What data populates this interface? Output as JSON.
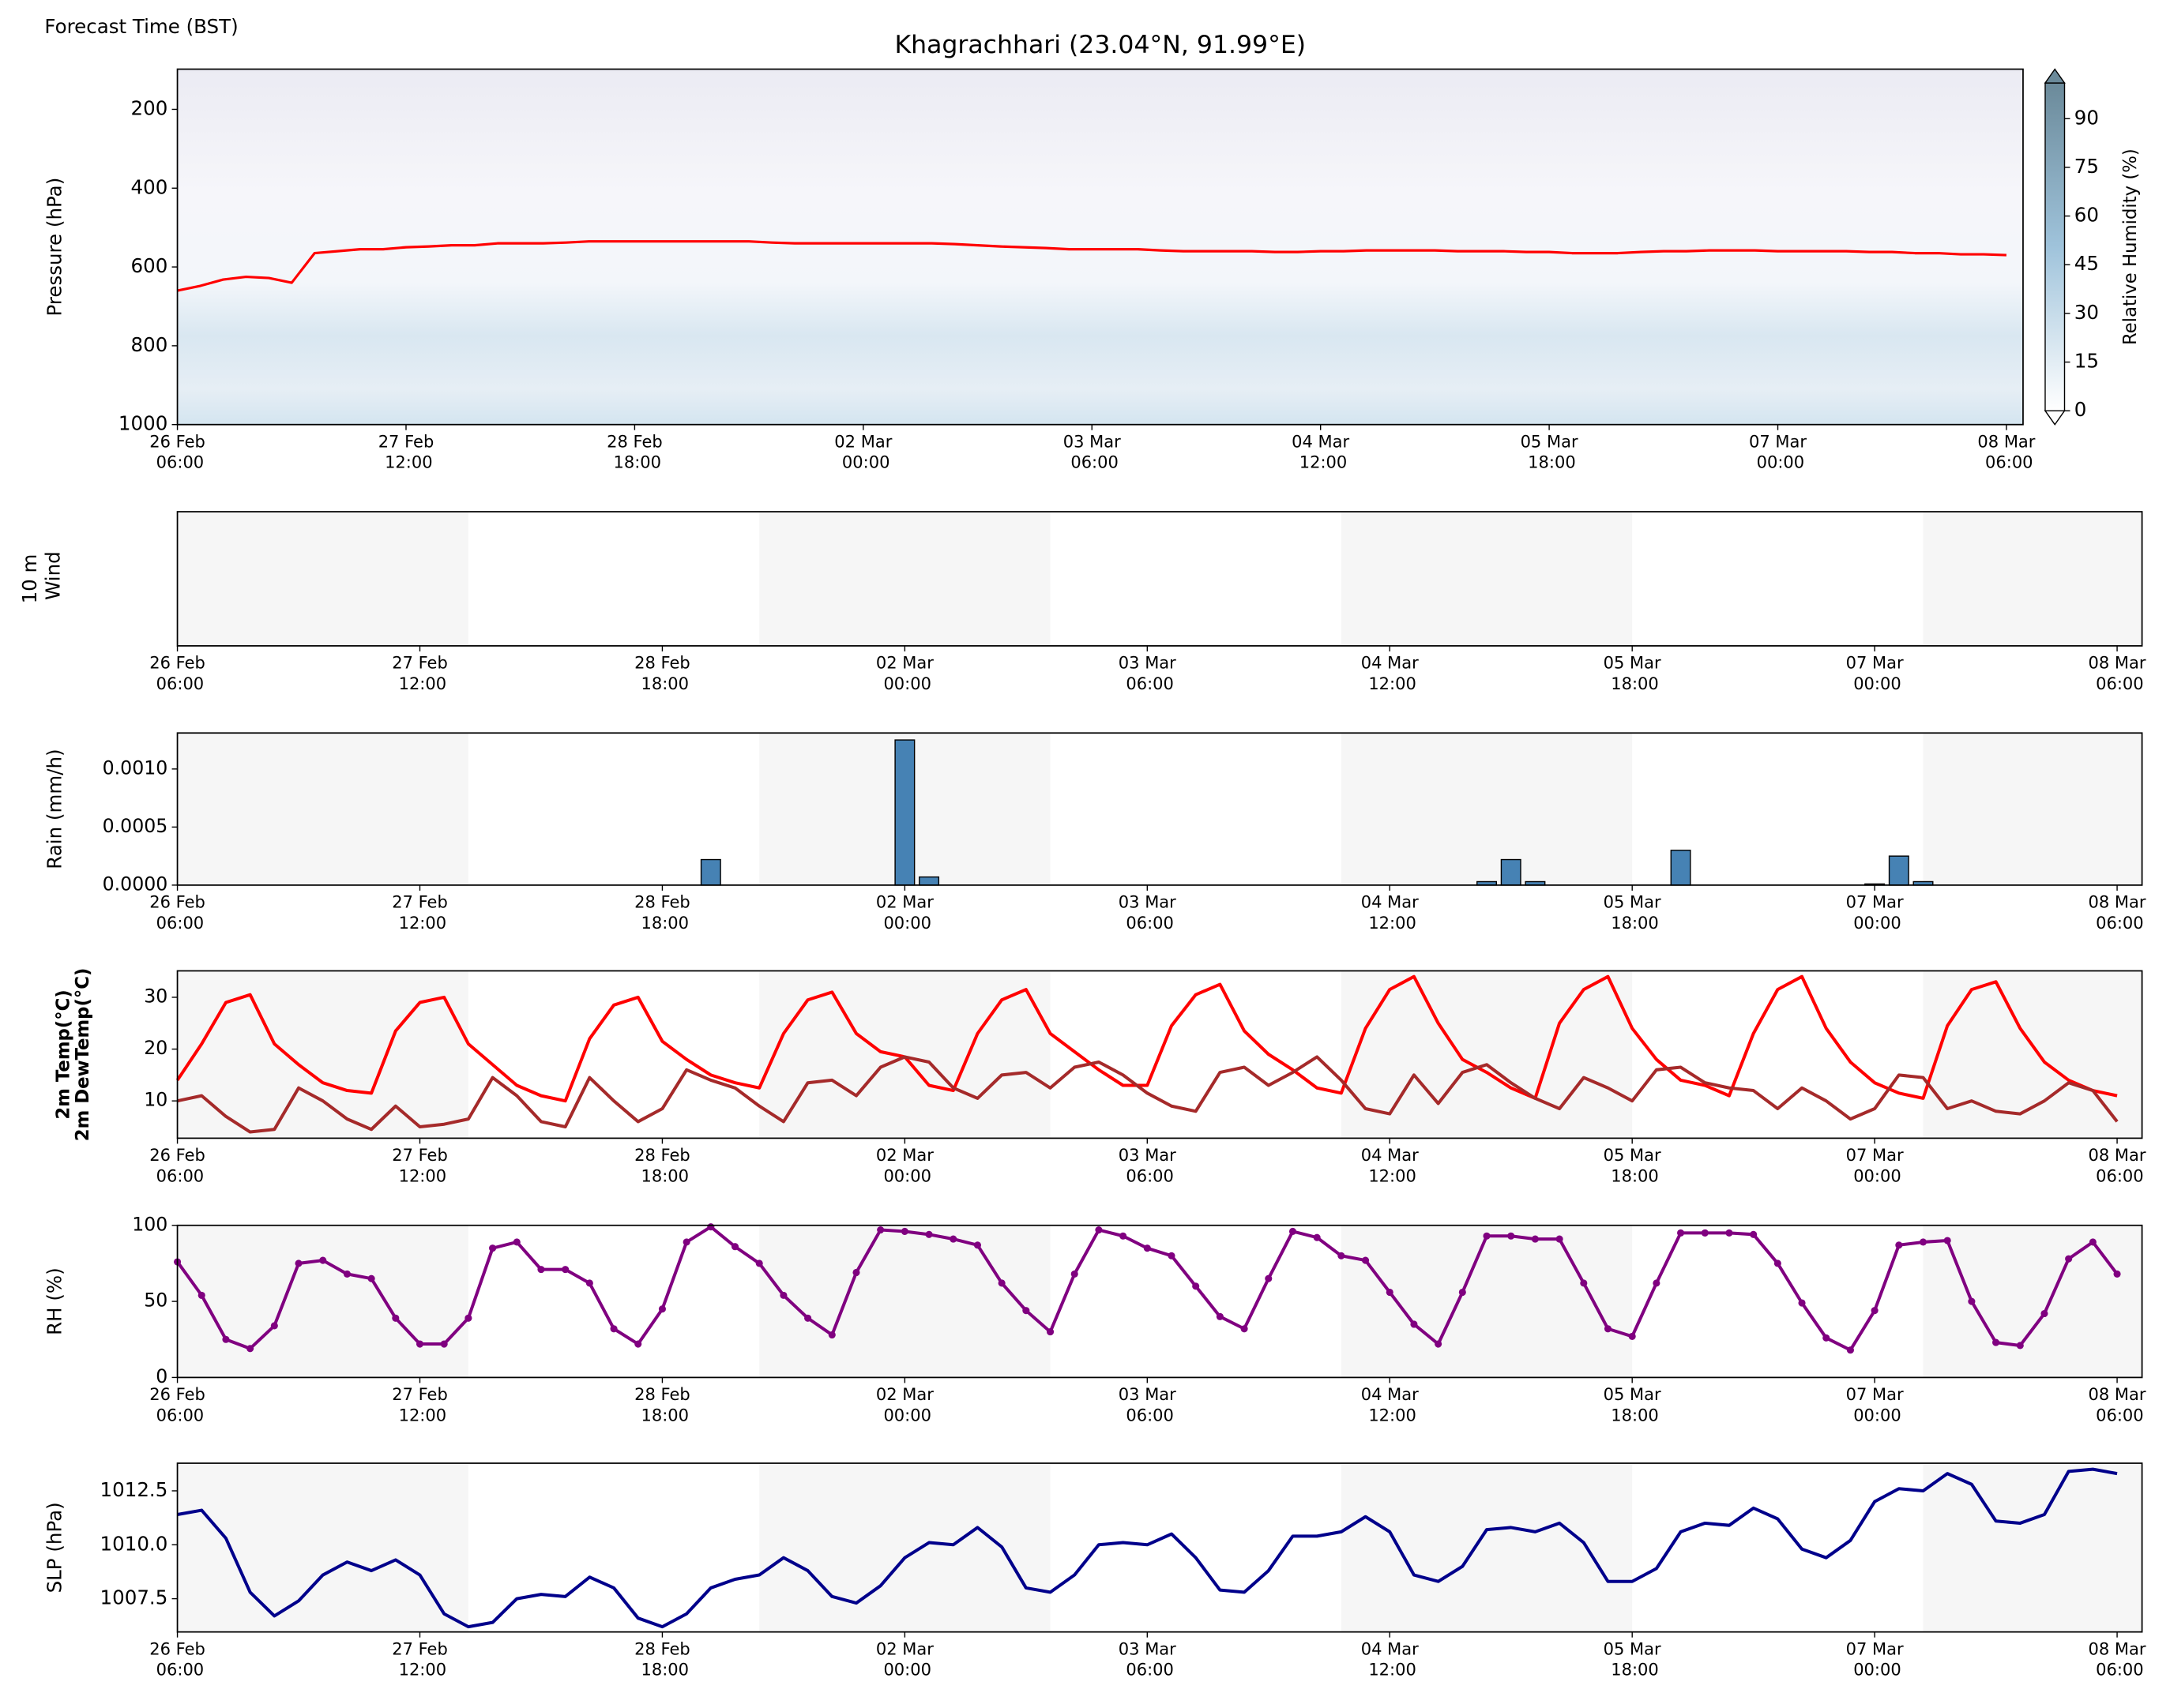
{
  "chart_data": {
    "type": "meteogram",
    "title": "Khagrachhari (23.04°N, 91.99°E)",
    "subtitle": "Forecast Time (BST)",
    "x": [
      "26 Feb 06:00",
      "26 Feb 09:00",
      "26 Feb 12:00",
      "26 Feb 15:00",
      "26 Feb 18:00",
      "26 Feb 21:00",
      "27 Feb 00:00",
      "27 Feb 03:00",
      "27 Feb 06:00",
      "27 Feb 09:00",
      "27 Feb 12:00",
      "27 Feb 15:00",
      "27 Feb 18:00",
      "27 Feb 21:00",
      "28 Feb 00:00",
      "28 Feb 03:00",
      "28 Feb 06:00",
      "28 Feb 09:00",
      "28 Feb 12:00",
      "28 Feb 15:00",
      "28 Feb 18:00",
      "28 Feb 21:00",
      "01 Mar 00:00",
      "01 Mar 03:00",
      "01 Mar 06:00",
      "01 Mar 09:00",
      "01 Mar 12:00",
      "01 Mar 15:00",
      "01 Mar 18:00",
      "01 Mar 21:00",
      "02 Mar 00:00",
      "02 Mar 03:00",
      "02 Mar 06:00",
      "02 Mar 09:00",
      "02 Mar 12:00",
      "02 Mar 15:00",
      "02 Mar 18:00",
      "02 Mar 21:00",
      "03 Mar 00:00",
      "03 Mar 03:00",
      "03 Mar 06:00",
      "03 Mar 09:00",
      "03 Mar 12:00",
      "03 Mar 15:00",
      "03 Mar 18:00",
      "03 Mar 21:00",
      "04 Mar 00:00",
      "04 Mar 03:00",
      "04 Mar 06:00",
      "04 Mar 09:00",
      "04 Mar 12:00",
      "04 Mar 15:00",
      "04 Mar 18:00",
      "04 Mar 21:00",
      "05 Mar 00:00",
      "05 Mar 03:00",
      "05 Mar 06:00",
      "05 Mar 09:00",
      "05 Mar 12:00",
      "05 Mar 15:00",
      "05 Mar 18:00",
      "05 Mar 21:00",
      "06 Mar 00:00",
      "06 Mar 03:00",
      "06 Mar 06:00",
      "06 Mar 09:00",
      "06 Mar 12:00",
      "06 Mar 15:00",
      "06 Mar 18:00",
      "06 Mar 21:00",
      "07 Mar 00:00",
      "07 Mar 03:00",
      "07 Mar 06:00",
      "07 Mar 09:00",
      "07 Mar 12:00",
      "07 Mar 15:00",
      "07 Mar 18:00",
      "07 Mar 21:00",
      "08 Mar 00:00",
      "08 Mar 03:00",
      "08 Mar 06:00"
    ],
    "xticks": [
      "26 Feb 06:00",
      "27 Feb 12:00",
      "28 Feb 18:00",
      "02 Mar 00:00",
      "03 Mar 06:00",
      "04 Mar 12:00",
      "05 Mar 18:00",
      "07 Mar 00:00",
      "08 Mar 06:00"
    ],
    "panels": [
      {
        "type": "line",
        "ylabel": "Pressure (hPa)",
        "ylabel_color": "#000000",
        "ylim": [
          1000,
          98
        ],
        "yticks": [
          200,
          400,
          600,
          800,
          1000
        ],
        "series": [
          {
            "color": "#ff0000",
            "values": [
              660,
              648,
              632,
              625,
              628,
              640,
              565,
              560,
              555,
              555,
              550,
              548,
              545,
              545,
              540,
              540,
              540,
              538,
              535,
              535,
              535,
              535,
              535,
              535,
              535,
              535,
              538,
              540,
              540,
              540,
              540,
              540,
              540,
              540,
              542,
              545,
              548,
              550,
              552,
              555,
              555,
              555,
              555,
              558,
              560,
              560,
              560,
              560,
              562,
              562,
              560,
              560,
              558,
              558,
              558,
              558,
              560,
              560,
              560,
              562,
              562,
              565,
              565,
              565,
              562,
              560,
              560,
              558,
              558,
              558,
              560,
              560,
              560,
              560,
              562,
              562,
              565,
              565,
              568,
              568,
              570
            ]
          }
        ],
        "colorbar": {
          "label": "Relative Humidity (%)",
          "lim": [
            0,
            101
          ],
          "ticks": [
            0,
            15,
            30,
            45,
            60,
            75,
            90
          ]
        }
      },
      {
        "type": "wind",
        "ylabel": "10 m\nWind",
        "ylabel_color": "#00008b"
      },
      {
        "type": "bar",
        "ylabel": "Rain (mm/h)",
        "ylabel_color": "#1f77b4",
        "color": "#4682b4",
        "ylim": [
          0,
          0.00131
        ],
        "yticks": [
          {
            "value": 0,
            "label": "0.0000"
          },
          {
            "value": 0.0005,
            "label": "0.0005"
          },
          {
            "value": 0.001,
            "label": "0.0010"
          }
        ],
        "values": [
          0,
          0,
          0,
          0,
          0,
          0,
          0,
          0,
          0,
          0,
          0,
          0,
          0,
          0,
          0,
          0,
          0,
          0,
          0,
          0,
          0,
          0,
          0.00022,
          0,
          0,
          0,
          0,
          0,
          0,
          0,
          0.00125,
          7e-05,
          0,
          0,
          0,
          0,
          0,
          0,
          0,
          0,
          0,
          0,
          0,
          0,
          0,
          0,
          0,
          0,
          0,
          0,
          0,
          0,
          0,
          0,
          3e-05,
          0.00022,
          3e-05,
          0,
          0,
          0,
          0,
          0,
          0.0003,
          0,
          0,
          0,
          0,
          0,
          0,
          0,
          1e-05,
          0.00025,
          3e-05,
          0,
          0,
          0,
          0,
          0,
          0,
          0,
          0
        ]
      },
      {
        "type": "line",
        "ylim": [
          2.8,
          35.1
        ],
        "yticks": [
          10,
          20,
          30
        ],
        "series": [
          {
            "name": "2m Temp(°C)",
            "color": "#ff0000",
            "values": [
              14,
              21,
              29,
              30.5,
              21,
              17,
              13.5,
              12,
              11.5,
              23.5,
              29,
              30,
              21,
              17,
              13,
              11,
              10,
              22,
              28.5,
              30,
              21.5,
              18,
              15,
              13.5,
              12.5,
              23,
              29.5,
              31,
              23,
              19.5,
              18.5,
              13,
              12,
              23,
              29.5,
              31.5,
              23,
              19.5,
              16,
              13,
              13,
              24.5,
              30.5,
              32.5,
              23.5,
              19,
              16,
              12.5,
              11.5,
              24,
              31.5,
              34,
              25,
              18,
              15.5,
              12.5,
              10.5,
              25,
              31.5,
              34,
              24,
              18,
              14,
              13,
              11,
              23,
              31.5,
              34,
              24,
              17.5,
              13.5,
              11.5,
              10.5,
              24.5,
              31.5,
              33,
              24,
              17.5,
              14,
              12,
              11
            ]
          },
          {
            "name": "2m DewTemp(°C)",
            "color": "#a52a2a",
            "values": [
              10,
              11,
              7,
              4,
              4.5,
              12.5,
              10,
              6.5,
              4.5,
              9,
              5,
              5.5,
              6.5,
              14.5,
              11,
              6,
              5,
              14.5,
              10,
              6,
              8.5,
              16,
              14,
              12.5,
              9,
              6,
              13.5,
              14,
              11,
              16.5,
              18.5,
              17.5,
              12.5,
              10.5,
              15,
              15.5,
              12.5,
              16.5,
              17.5,
              15,
              11.5,
              9,
              8,
              15.5,
              16.5,
              13,
              15.5,
              18.5,
              14,
              8.5,
              7.5,
              15,
              9.5,
              15.5,
              17,
              13.5,
              10.5,
              8.5,
              14.5,
              12.5,
              10,
              16,
              16.5,
              13.5,
              12.5,
              12,
              8.5,
              12.5,
              10,
              6.5,
              8.5,
              15,
              14.5,
              8.5,
              10,
              8,
              7.5,
              10,
              13.5,
              12,
              6
            ]
          }
        ]
      },
      {
        "type": "line",
        "ylabel": "RH (%)",
        "ylabel_color": "#800080",
        "markers": true,
        "ylim": [
          0,
          100
        ],
        "yticks": [
          0,
          50,
          100
        ],
        "series": [
          {
            "color": "#800080",
            "values": [
              76,
              54,
              25,
              19,
              34,
              75,
              77,
              68,
              65,
              39,
              22,
              22,
              39,
              85,
              89,
              71,
              71,
              62,
              32,
              22,
              45,
              89,
              99,
              86,
              75,
              54,
              39,
              28,
              69,
              97,
              96,
              94,
              91,
              87,
              62,
              44,
              30,
              68,
              97,
              93,
              85,
              80,
              60,
              40,
              32,
              65,
              96,
              92,
              80,
              77,
              56,
              35,
              22,
              56,
              93,
              93,
              91,
              91,
              62,
              32,
              27,
              62,
              95,
              95,
              95,
              94,
              75,
              49,
              26,
              18,
              44,
              87,
              89,
              90,
              50,
              23,
              21,
              42,
              78,
              89,
              68
            ]
          }
        ]
      },
      {
        "type": "line",
        "ylabel": "SLP (hPa)",
        "ylabel_color": "#00008b",
        "ylim": [
          1005.96,
          1013.78
        ],
        "yticks": [
          1007.5,
          {
            "value": 1010,
            "label": "1010.0"
          },
          1012.5
        ],
        "series": [
          {
            "color": "#00008b",
            "values": [
              1011.4,
              1011.6,
              1010.3,
              1007.8,
              1006.7,
              1007.4,
              1008.6,
              1009.2,
              1008.8,
              1009.3,
              1008.6,
              1006.8,
              1006.2,
              1006.4,
              1007.5,
              1007.7,
              1007.6,
              1008.5,
              1008.0,
              1006.6,
              1006.2,
              1006.8,
              1008.0,
              1008.4,
              1008.6,
              1009.4,
              1008.8,
              1007.6,
              1007.3,
              1008.1,
              1009.4,
              1010.1,
              1010.0,
              1010.8,
              1009.9,
              1008.0,
              1007.8,
              1008.6,
              1010.0,
              1010.1,
              1010.0,
              1010.5,
              1009.4,
              1007.9,
              1007.8,
              1008.8,
              1010.4,
              1010.4,
              1010.6,
              1011.3,
              1010.6,
              1008.6,
              1008.3,
              1009.0,
              1010.7,
              1010.8,
              1010.6,
              1011.0,
              1010.1,
              1008.3,
              1008.3,
              1008.9,
              1010.6,
              1011.0,
              1010.9,
              1011.7,
              1011.2,
              1009.8,
              1009.4,
              1010.2,
              1012.0,
              1012.6,
              1012.5,
              1013.3,
              1012.8,
              1011.1,
              1011.0,
              1011.4,
              1013.4,
              1013.5,
              1013.3
            ]
          }
        ]
      }
    ]
  }
}
